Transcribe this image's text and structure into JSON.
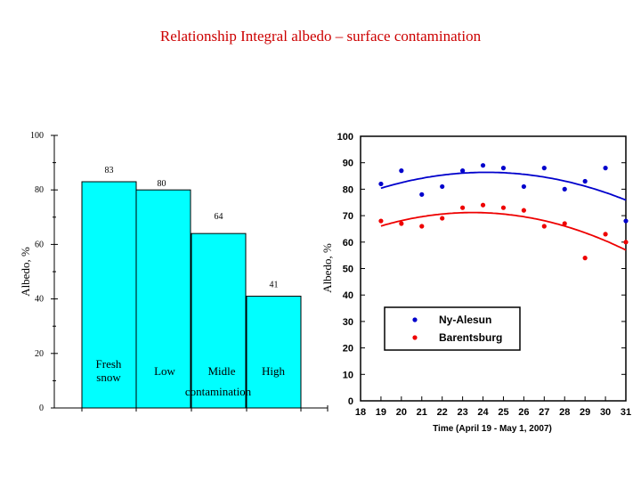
{
  "page": {
    "title": "Relationship Integral albedo – surface  contamination"
  },
  "chart_data": [
    {
      "type": "bar",
      "categories": [
        "Fresh snow",
        "Low",
        "Midle",
        "High"
      ],
      "values": [
        83,
        80,
        64,
        41
      ],
      "value_labels": [
        "83",
        "80",
        "64",
        "41"
      ],
      "xlabel": "contamination",
      "ylabel": "Albedo, %",
      "ylim": [
        0,
        100
      ],
      "yticks": [
        "0",
        "20",
        "40",
        "60",
        "80",
        "100"
      ],
      "bar_color": "#00ffff",
      "grid": false
    },
    {
      "type": "scatter",
      "xlabel": "Time (April 19 - May 1, 2007)",
      "ylabel": "Albedo, %",
      "xlim": [
        18,
        31
      ],
      "ylim": [
        0,
        100
      ],
      "xticks": [
        "18",
        "19",
        "20",
        "21",
        "22",
        "23",
        "24",
        "25",
        "26",
        "27",
        "28",
        "29",
        "30",
        "31"
      ],
      "yticks": [
        "0",
        "10",
        "20",
        "30",
        "40",
        "50",
        "60",
        "70",
        "80",
        "90",
        "100"
      ],
      "legend_position": "center-left",
      "grid": false,
      "series": [
        {
          "name": "Ny-Alesun",
          "color": "#0000cc",
          "x": [
            19,
            20,
            21,
            22,
            23,
            24,
            25,
            26,
            27,
            28,
            29,
            30,
            31
          ],
          "y": [
            82,
            87,
            78,
            81,
            87,
            89,
            88,
            81,
            88,
            80,
            83,
            88,
            68
          ],
          "trend": "quadratic"
        },
        {
          "name": "Barentsburg",
          "color": "#ee0000",
          "x": [
            19,
            20,
            21,
            22,
            23,
            24,
            25,
            26,
            27,
            28,
            29,
            30,
            31
          ],
          "y": [
            68,
            67,
            66,
            69,
            73,
            74,
            73,
            72,
            66,
            67,
            54,
            63,
            60
          ],
          "trend": "quadratic"
        }
      ]
    }
  ]
}
